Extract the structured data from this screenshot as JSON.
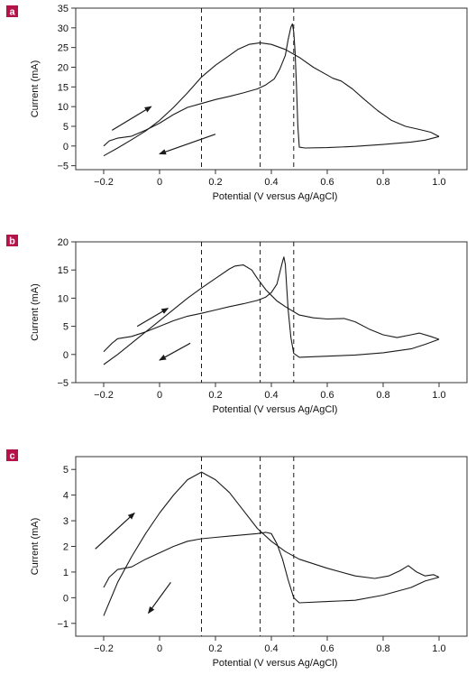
{
  "colors": {
    "panel_badge": "#b5124a",
    "curve": "#1a1a1a",
    "axes": "#333333"
  },
  "chart_data": [
    {
      "type": "line",
      "panel": "a",
      "xlabel": "Potential (V versus Ag/AgCl)",
      "ylabel": "Current (mA)",
      "xlim": [
        -0.3,
        1.1
      ],
      "ylim": [
        -6,
        35
      ],
      "xticks": [
        "−0.2",
        "0",
        "0.2",
        "0.4",
        "0.6",
        "0.8",
        "1.0"
      ],
      "xtick_values": [
        -0.2,
        0,
        0.2,
        0.4,
        0.6,
        0.8,
        1.0
      ],
      "yticks": [
        "−5",
        "0",
        "5",
        "10",
        "15",
        "20",
        "25",
        "30",
        "35"
      ],
      "ytick_values": [
        -5,
        0,
        5,
        10,
        15,
        20,
        25,
        30,
        35
      ],
      "vlines": [
        0.15,
        0.36,
        0.48
      ],
      "arrows": [
        {
          "from": [
            -0.17,
            4.0
          ],
          "to": [
            -0.03,
            10.0
          ]
        },
        {
          "from": [
            0.2,
            3.0
          ],
          "to": [
            0.0,
            -2.0
          ]
        }
      ],
      "series": [
        {
          "values": [
            [
              -0.2,
              0.0
            ],
            [
              -0.18,
              1.3
            ],
            [
              -0.15,
              2.0
            ],
            [
              -0.1,
              2.5
            ],
            [
              -0.05,
              4.0
            ],
            [
              0.0,
              5.8
            ],
            [
              0.05,
              8.0
            ],
            [
              0.1,
              9.8
            ],
            [
              0.15,
              10.8
            ],
            [
              0.2,
              11.8
            ],
            [
              0.25,
              12.6
            ],
            [
              0.3,
              13.5
            ],
            [
              0.35,
              14.5
            ],
            [
              0.38,
              15.5
            ],
            [
              0.41,
              17.0
            ],
            [
              0.43,
              19.5
            ],
            [
              0.45,
              23.0
            ],
            [
              0.46,
              27.0
            ],
            [
              0.47,
              30.2
            ],
            [
              0.475,
              31.0
            ],
            [
              0.48,
              29.0
            ],
            [
              0.485,
              24.0
            ],
            [
              0.49,
              15.0
            ],
            [
              0.495,
              5.0
            ],
            [
              0.5,
              -0.3
            ],
            [
              0.52,
              -0.5
            ],
            [
              0.6,
              -0.4
            ],
            [
              0.7,
              -0.1
            ],
            [
              0.8,
              0.4
            ],
            [
              0.9,
              1.0
            ],
            [
              0.95,
              1.5
            ],
            [
              1.0,
              2.4
            ]
          ]
        },
        {
          "values": [
            [
              1.0,
              2.4
            ],
            [
              0.97,
              3.5
            ],
            [
              0.93,
              4.2
            ],
            [
              0.88,
              5.0
            ],
            [
              0.83,
              6.5
            ],
            [
              0.78,
              9.0
            ],
            [
              0.73,
              12.0
            ],
            [
              0.69,
              14.5
            ],
            [
              0.65,
              16.5
            ],
            [
              0.62,
              17.2
            ],
            [
              0.6,
              18.0
            ],
            [
              0.55,
              20.0
            ],
            [
              0.5,
              22.5
            ],
            [
              0.45,
              24.5
            ],
            [
              0.4,
              25.8
            ],
            [
              0.36,
              26.2
            ],
            [
              0.32,
              25.8
            ],
            [
              0.28,
              24.5
            ],
            [
              0.25,
              23.0
            ],
            [
              0.2,
              20.5
            ],
            [
              0.15,
              17.5
            ],
            [
              0.1,
              13.5
            ],
            [
              0.05,
              9.8
            ],
            [
              0.0,
              6.5
            ],
            [
              -0.05,
              3.8
            ],
            [
              -0.1,
              1.6
            ],
            [
              -0.15,
              -0.5
            ],
            [
              -0.2,
              -2.5
            ]
          ]
        }
      ]
    },
    {
      "type": "line",
      "panel": "b",
      "xlabel": "Potential (V versus Ag/AgCl)",
      "ylabel": "Current (mA)",
      "xlim": [
        -0.3,
        1.1
      ],
      "ylim": [
        -5,
        20
      ],
      "xticks": [
        "−0.2",
        "0",
        "0.2",
        "0.4",
        "0.6",
        "0.8",
        "1.0"
      ],
      "xtick_values": [
        -0.2,
        0,
        0.2,
        0.4,
        0.6,
        0.8,
        1.0
      ],
      "yticks": [
        "−5",
        "0",
        "5",
        "10",
        "15",
        "20"
      ],
      "ytick_values": [
        -5,
        0,
        5,
        10,
        15,
        20
      ],
      "vlines": [
        0.15,
        0.36,
        0.48
      ],
      "arrows": [
        {
          "from": [
            -0.08,
            5.0
          ],
          "to": [
            0.03,
            8.2
          ]
        },
        {
          "from": [
            0.11,
            2.0
          ],
          "to": [
            0.0,
            -1.0
          ]
        }
      ],
      "series": [
        {
          "values": [
            [
              -0.2,
              0.5
            ],
            [
              -0.17,
              2.0
            ],
            [
              -0.15,
              2.8
            ],
            [
              -0.1,
              3.2
            ],
            [
              -0.05,
              4.0
            ],
            [
              0.0,
              5.0
            ],
            [
              0.05,
              6.0
            ],
            [
              0.1,
              6.8
            ],
            [
              0.15,
              7.3
            ],
            [
              0.2,
              7.9
            ],
            [
              0.25,
              8.5
            ],
            [
              0.3,
              9.0
            ],
            [
              0.35,
              9.6
            ],
            [
              0.38,
              10.2
            ],
            [
              0.4,
              11.0
            ],
            [
              0.42,
              12.5
            ],
            [
              0.43,
              14.5
            ],
            [
              0.44,
              16.5
            ],
            [
              0.445,
              17.3
            ],
            [
              0.45,
              16.0
            ],
            [
              0.455,
              12.0
            ],
            [
              0.46,
              8.0
            ],
            [
              0.47,
              3.0
            ],
            [
              0.48,
              0.2
            ],
            [
              0.5,
              -0.5
            ],
            [
              0.6,
              -0.3
            ],
            [
              0.7,
              -0.1
            ],
            [
              0.8,
              0.3
            ],
            [
              0.9,
              1.0
            ],
            [
              0.95,
              1.8
            ],
            [
              1.0,
              2.7
            ]
          ]
        },
        {
          "values": [
            [
              1.0,
              2.7
            ],
            [
              0.97,
              3.2
            ],
            [
              0.93,
              3.8
            ],
            [
              0.9,
              3.5
            ],
            [
              0.85,
              3.0
            ],
            [
              0.8,
              3.5
            ],
            [
              0.75,
              4.5
            ],
            [
              0.7,
              5.8
            ],
            [
              0.66,
              6.4
            ],
            [
              0.6,
              6.3
            ],
            [
              0.55,
              6.5
            ],
            [
              0.5,
              7.0
            ],
            [
              0.45,
              8.5
            ],
            [
              0.42,
              9.5
            ],
            [
              0.4,
              10.5
            ],
            [
              0.38,
              11.5
            ],
            [
              0.35,
              13.5
            ],
            [
              0.33,
              15.0
            ],
            [
              0.3,
              15.9
            ],
            [
              0.27,
              15.7
            ],
            [
              0.25,
              15.2
            ],
            [
              0.2,
              13.5
            ],
            [
              0.15,
              11.8
            ],
            [
              0.1,
              10.0
            ],
            [
              0.05,
              8.0
            ],
            [
              0.0,
              6.0
            ],
            [
              -0.05,
              4.0
            ],
            [
              -0.1,
              2.0
            ],
            [
              -0.15,
              0.0
            ],
            [
              -0.2,
              -1.8
            ]
          ]
        }
      ]
    },
    {
      "type": "line",
      "panel": "c",
      "xlabel": "Potential (V versus Ag/AgCl)",
      "ylabel": "Current (mA)",
      "xlim": [
        -0.3,
        1.1
      ],
      "ylim": [
        -1.5,
        5.5
      ],
      "xticks": [
        "−0.2",
        "0",
        "0.2",
        "0.4",
        "0.6",
        "0.8",
        "1.0"
      ],
      "xtick_values": [
        -0.2,
        0,
        0.2,
        0.4,
        0.6,
        0.8,
        1.0
      ],
      "yticks": [
        "−1",
        "0",
        "1",
        "2",
        "3",
        "4",
        "5"
      ],
      "ytick_values": [
        -1,
        0,
        1,
        2,
        3,
        4,
        5
      ],
      "vlines": [
        0.15,
        0.36,
        0.48
      ],
      "arrows": [
        {
          "from": [
            -0.23,
            1.9
          ],
          "to": [
            -0.09,
            3.3
          ]
        },
        {
          "from": [
            0.04,
            0.6
          ],
          "to": [
            -0.04,
            -0.6
          ]
        }
      ],
      "series": [
        {
          "values": [
            [
              -0.2,
              0.4
            ],
            [
              -0.18,
              0.8
            ],
            [
              -0.15,
              1.1
            ],
            [
              -0.1,
              1.2
            ],
            [
              -0.05,
              1.5
            ],
            [
              0.0,
              1.75
            ],
            [
              0.05,
              2.0
            ],
            [
              0.1,
              2.2
            ],
            [
              0.15,
              2.3
            ],
            [
              0.2,
              2.35
            ],
            [
              0.25,
              2.4
            ],
            [
              0.3,
              2.45
            ],
            [
              0.35,
              2.5
            ],
            [
              0.38,
              2.55
            ],
            [
              0.4,
              2.5
            ],
            [
              0.42,
              2.1
            ],
            [
              0.44,
              1.5
            ],
            [
              0.46,
              0.7
            ],
            [
              0.48,
              0.0
            ],
            [
              0.5,
              -0.2
            ],
            [
              0.6,
              -0.15
            ],
            [
              0.7,
              -0.1
            ],
            [
              0.8,
              0.1
            ],
            [
              0.9,
              0.4
            ],
            [
              0.95,
              0.65
            ],
            [
              1.0,
              0.8
            ]
          ]
        },
        {
          "values": [
            [
              1.0,
              0.8
            ],
            [
              0.98,
              0.9
            ],
            [
              0.95,
              0.85
            ],
            [
              0.92,
              1.0
            ],
            [
              0.89,
              1.25
            ],
            [
              0.86,
              1.05
            ],
            [
              0.82,
              0.85
            ],
            [
              0.77,
              0.75
            ],
            [
              0.7,
              0.85
            ],
            [
              0.6,
              1.15
            ],
            [
              0.5,
              1.5
            ],
            [
              0.45,
              1.8
            ],
            [
              0.4,
              2.2
            ],
            [
              0.35,
              2.7
            ],
            [
              0.3,
              3.4
            ],
            [
              0.25,
              4.1
            ],
            [
              0.2,
              4.6
            ],
            [
              0.15,
              4.9
            ],
            [
              0.1,
              4.6
            ],
            [
              0.05,
              4.0
            ],
            [
              0.0,
              3.3
            ],
            [
              -0.05,
              2.5
            ],
            [
              -0.1,
              1.6
            ],
            [
              -0.15,
              0.6
            ],
            [
              -0.2,
              -0.7
            ]
          ]
        }
      ]
    }
  ]
}
